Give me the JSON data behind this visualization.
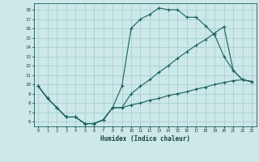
{
  "xlabel": "Humidex (Indice chaleur)",
  "background_color": "#cce8e8",
  "grid_color": "#aacfcf",
  "line_color": "#1a6060",
  "xlim": [
    -0.5,
    23.5
  ],
  "ylim": [
    5.5,
    18.7
  ],
  "xticks": [
    0,
    1,
    2,
    3,
    4,
    5,
    6,
    7,
    8,
    9,
    10,
    11,
    12,
    13,
    14,
    15,
    16,
    17,
    18,
    19,
    20,
    21,
    22,
    23
  ],
  "yticks": [
    6,
    7,
    8,
    9,
    10,
    11,
    12,
    13,
    14,
    15,
    16,
    17,
    18
  ],
  "line1_x": [
    0,
    1,
    2,
    3,
    4,
    5,
    6,
    7,
    8,
    9,
    10,
    11,
    12,
    13,
    14,
    15,
    16,
    17,
    18,
    19,
    20,
    21,
    22,
    23
  ],
  "line1_y": [
    9.8,
    8.5,
    7.5,
    6.5,
    6.5,
    5.8,
    5.8,
    6.2,
    7.5,
    9.8,
    16.0,
    17.0,
    17.5,
    18.2,
    18.0,
    18.0,
    17.2,
    17.2,
    16.3,
    15.3,
    13.0,
    11.5,
    10.5,
    10.3
  ],
  "line2_x": [
    0,
    1,
    2,
    3,
    4,
    5,
    6,
    7,
    8,
    9,
    10,
    11,
    12,
    13,
    14,
    15,
    16,
    17,
    18,
    19,
    20,
    21,
    22,
    23
  ],
  "line2_y": [
    9.8,
    8.5,
    7.5,
    6.5,
    6.5,
    5.8,
    5.8,
    6.2,
    7.5,
    7.5,
    9.0,
    9.8,
    10.5,
    11.3,
    12.0,
    12.8,
    13.5,
    14.2,
    14.8,
    15.5,
    16.2,
    11.5,
    10.5,
    10.3
  ],
  "line3_x": [
    0,
    1,
    2,
    3,
    4,
    5,
    6,
    7,
    8,
    9,
    10,
    11,
    12,
    13,
    14,
    15,
    16,
    17,
    18,
    19,
    20,
    21,
    22,
    23
  ],
  "line3_y": [
    9.8,
    8.5,
    7.5,
    6.5,
    6.5,
    5.8,
    5.8,
    6.2,
    7.5,
    7.5,
    7.8,
    8.0,
    8.3,
    8.5,
    8.8,
    9.0,
    9.2,
    9.5,
    9.7,
    10.0,
    10.2,
    10.4,
    10.5,
    10.3
  ]
}
